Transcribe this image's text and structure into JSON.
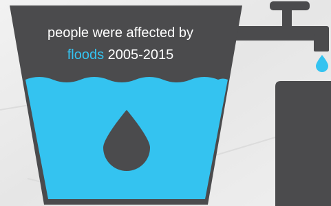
{
  "headline": {
    "line1": "people were affected by",
    "highlight": "floods",
    "period": "2005-2015"
  }
}
